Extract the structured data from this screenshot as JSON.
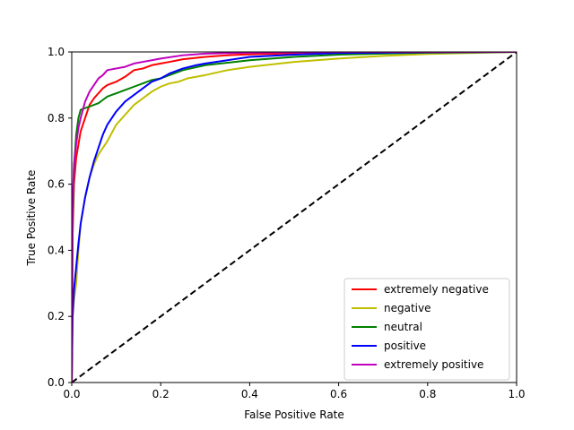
{
  "chart_data": {
    "type": "line",
    "title": "",
    "xlabel": "False Positive Rate",
    "ylabel": "True Positive Rate",
    "xlim": [
      0,
      1
    ],
    "ylim": [
      0,
      1
    ],
    "xticks": [
      "0.0",
      "0.2",
      "0.4",
      "0.6",
      "0.8",
      "1.0"
    ],
    "yticks": [
      "0.0",
      "0.2",
      "0.4",
      "0.6",
      "0.8",
      "1.0"
    ],
    "grid": false,
    "legend_position": "bottom-right",
    "series": [
      {
        "name": "extremely negative",
        "color": "#ff0000",
        "x": [
          0,
          0.002,
          0.005,
          0.01,
          0.015,
          0.02,
          0.03,
          0.04,
          0.05,
          0.06,
          0.07,
          0.08,
          0.1,
          0.12,
          0.14,
          0.16,
          0.18,
          0.2,
          0.22,
          0.25,
          0.3,
          0.35,
          0.4,
          0.5,
          0.6,
          0.8,
          1.0
        ],
        "y": [
          0,
          0.45,
          0.6,
          0.68,
          0.72,
          0.76,
          0.8,
          0.84,
          0.86,
          0.875,
          0.89,
          0.9,
          0.91,
          0.925,
          0.945,
          0.95,
          0.96,
          0.965,
          0.97,
          0.978,
          0.985,
          0.99,
          0.993,
          0.996,
          0.998,
          0.999,
          1.0
        ]
      },
      {
        "name": "negative",
        "color": "#bfbf00",
        "x": [
          0,
          0.002,
          0.005,
          0.01,
          0.015,
          0.02,
          0.03,
          0.04,
          0.05,
          0.06,
          0.07,
          0.08,
          0.1,
          0.12,
          0.14,
          0.16,
          0.18,
          0.2,
          0.22,
          0.24,
          0.26,
          0.3,
          0.35,
          0.4,
          0.5,
          0.6,
          0.7,
          0.8,
          1.0
        ],
        "y": [
          0,
          0.2,
          0.25,
          0.3,
          0.4,
          0.48,
          0.56,
          0.62,
          0.66,
          0.69,
          0.71,
          0.73,
          0.78,
          0.81,
          0.84,
          0.86,
          0.88,
          0.895,
          0.905,
          0.91,
          0.92,
          0.93,
          0.945,
          0.955,
          0.97,
          0.98,
          0.988,
          0.994,
          1.0
        ]
      },
      {
        "name": "neutral",
        "color": "#008000",
        "x": [
          0,
          0.002,
          0.005,
          0.01,
          0.015,
          0.02,
          0.03,
          0.04,
          0.05,
          0.06,
          0.07,
          0.08,
          0.1,
          0.12,
          0.14,
          0.16,
          0.18,
          0.2,
          0.22,
          0.25,
          0.3,
          0.4,
          0.5,
          0.6,
          0.8,
          1.0
        ],
        "y": [
          0,
          0.5,
          0.65,
          0.75,
          0.8,
          0.825,
          0.83,
          0.835,
          0.84,
          0.845,
          0.855,
          0.865,
          0.875,
          0.885,
          0.895,
          0.905,
          0.915,
          0.92,
          0.93,
          0.945,
          0.96,
          0.975,
          0.985,
          0.992,
          0.998,
          1.0
        ]
      },
      {
        "name": "positive",
        "color": "#0000ff",
        "x": [
          0,
          0.002,
          0.005,
          0.01,
          0.015,
          0.02,
          0.03,
          0.04,
          0.05,
          0.06,
          0.07,
          0.08,
          0.09,
          0.1,
          0.12,
          0.14,
          0.16,
          0.18,
          0.2,
          0.22,
          0.25,
          0.28,
          0.3,
          0.35,
          0.4,
          0.5,
          0.6,
          0.8,
          1.0
        ],
        "y": [
          0,
          0.2,
          0.28,
          0.35,
          0.42,
          0.48,
          0.56,
          0.62,
          0.67,
          0.71,
          0.75,
          0.78,
          0.8,
          0.82,
          0.85,
          0.87,
          0.89,
          0.91,
          0.92,
          0.935,
          0.95,
          0.96,
          0.965,
          0.975,
          0.985,
          0.992,
          0.997,
          0.999,
          1.0
        ]
      },
      {
        "name": "extremely positive",
        "color": "#bf00bf",
        "x": [
          0,
          0.002,
          0.005,
          0.01,
          0.015,
          0.02,
          0.03,
          0.04,
          0.05,
          0.06,
          0.07,
          0.08,
          0.1,
          0.12,
          0.14,
          0.16,
          0.18,
          0.2,
          0.25,
          0.3,
          0.4,
          0.5,
          0.6,
          0.8,
          1.0
        ],
        "y": [
          0,
          0.55,
          0.66,
          0.72,
          0.77,
          0.8,
          0.85,
          0.88,
          0.9,
          0.92,
          0.93,
          0.945,
          0.95,
          0.955,
          0.965,
          0.97,
          0.975,
          0.98,
          0.99,
          0.995,
          0.998,
          0.999,
          1.0,
          1.0,
          1.0
        ]
      }
    ],
    "reference_line": {
      "x": [
        0,
        1
      ],
      "y": [
        0,
        1
      ],
      "color": "#000000",
      "style": "dashed"
    }
  }
}
